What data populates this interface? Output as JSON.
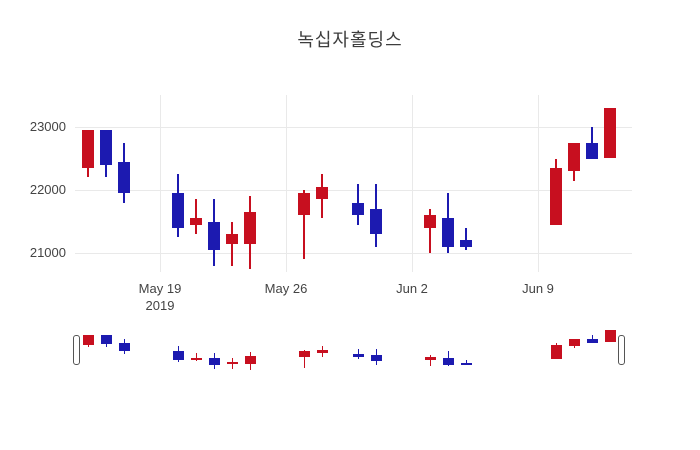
{
  "title": "녹십자홀딩스",
  "colors": {
    "increasing": "#c70f1f",
    "decreasing": "#1c1ab0",
    "grid": "#e9e9e9",
    "tick_label": "#444444",
    "title_text": "#3d3d3d",
    "background": "#ffffff",
    "slider_handle_border": "#555555"
  },
  "y_axis": {
    "ticks": [
      {
        "label": "23000",
        "value": 23000
      },
      {
        "label": "22000",
        "value": 22000
      },
      {
        "label": "21000",
        "value": 21000
      }
    ]
  },
  "x_axis": {
    "ticks": [
      {
        "label": "May 19",
        "sublabel": "2019",
        "date": "2019-05-19"
      },
      {
        "label": "May 26",
        "sublabel": "",
        "date": "2019-05-26"
      },
      {
        "label": "Jun 2",
        "sublabel": "",
        "date": "2019-06-02"
      },
      {
        "label": "Jun 9",
        "sublabel": "",
        "date": "2019-06-09"
      }
    ]
  },
  "chart_data": {
    "type": "candlestick",
    "title": "녹십자홀딩스",
    "legend_position": "none",
    "grid": true,
    "rangeslider": true,
    "ylim": [
      20700,
      23350
    ],
    "y_ticks": [
      21000,
      22000,
      23000
    ],
    "x": [
      "2019-05-15",
      "2019-05-16",
      "2019-05-17",
      "2019-05-20",
      "2019-05-21",
      "2019-05-22",
      "2019-05-23",
      "2019-05-24",
      "2019-05-27",
      "2019-05-28",
      "2019-05-30",
      "2019-05-31",
      "2019-06-03",
      "2019-06-04",
      "2019-06-05",
      "2019-06-10",
      "2019-06-11",
      "2019-06-12",
      "2019-06-13"
    ],
    "open": [
      22350,
      22950,
      22450,
      21950,
      21450,
      21500,
      21150,
      21150,
      21600,
      21850,
      21800,
      21700,
      21400,
      21550,
      21200,
      21450,
      22300,
      22750,
      22500
    ],
    "high": [
      22950,
      22950,
      22750,
      22250,
      21850,
      21850,
      21500,
      21900,
      22000,
      22250,
      22100,
      22100,
      21700,
      21950,
      21400,
      22500,
      22750,
      23000,
      23300
    ],
    "low": [
      22200,
      22200,
      21800,
      21250,
      21300,
      20800,
      20800,
      20750,
      20900,
      21550,
      21450,
      21100,
      21000,
      21000,
      21050,
      21450,
      22150,
      22500,
      22500
    ],
    "close": [
      22950,
      22400,
      21950,
      21400,
      21550,
      21050,
      21300,
      21650,
      21950,
      22050,
      21600,
      21300,
      21600,
      21100,
      21100,
      22350,
      22750,
      22500,
      23300
    ]
  }
}
